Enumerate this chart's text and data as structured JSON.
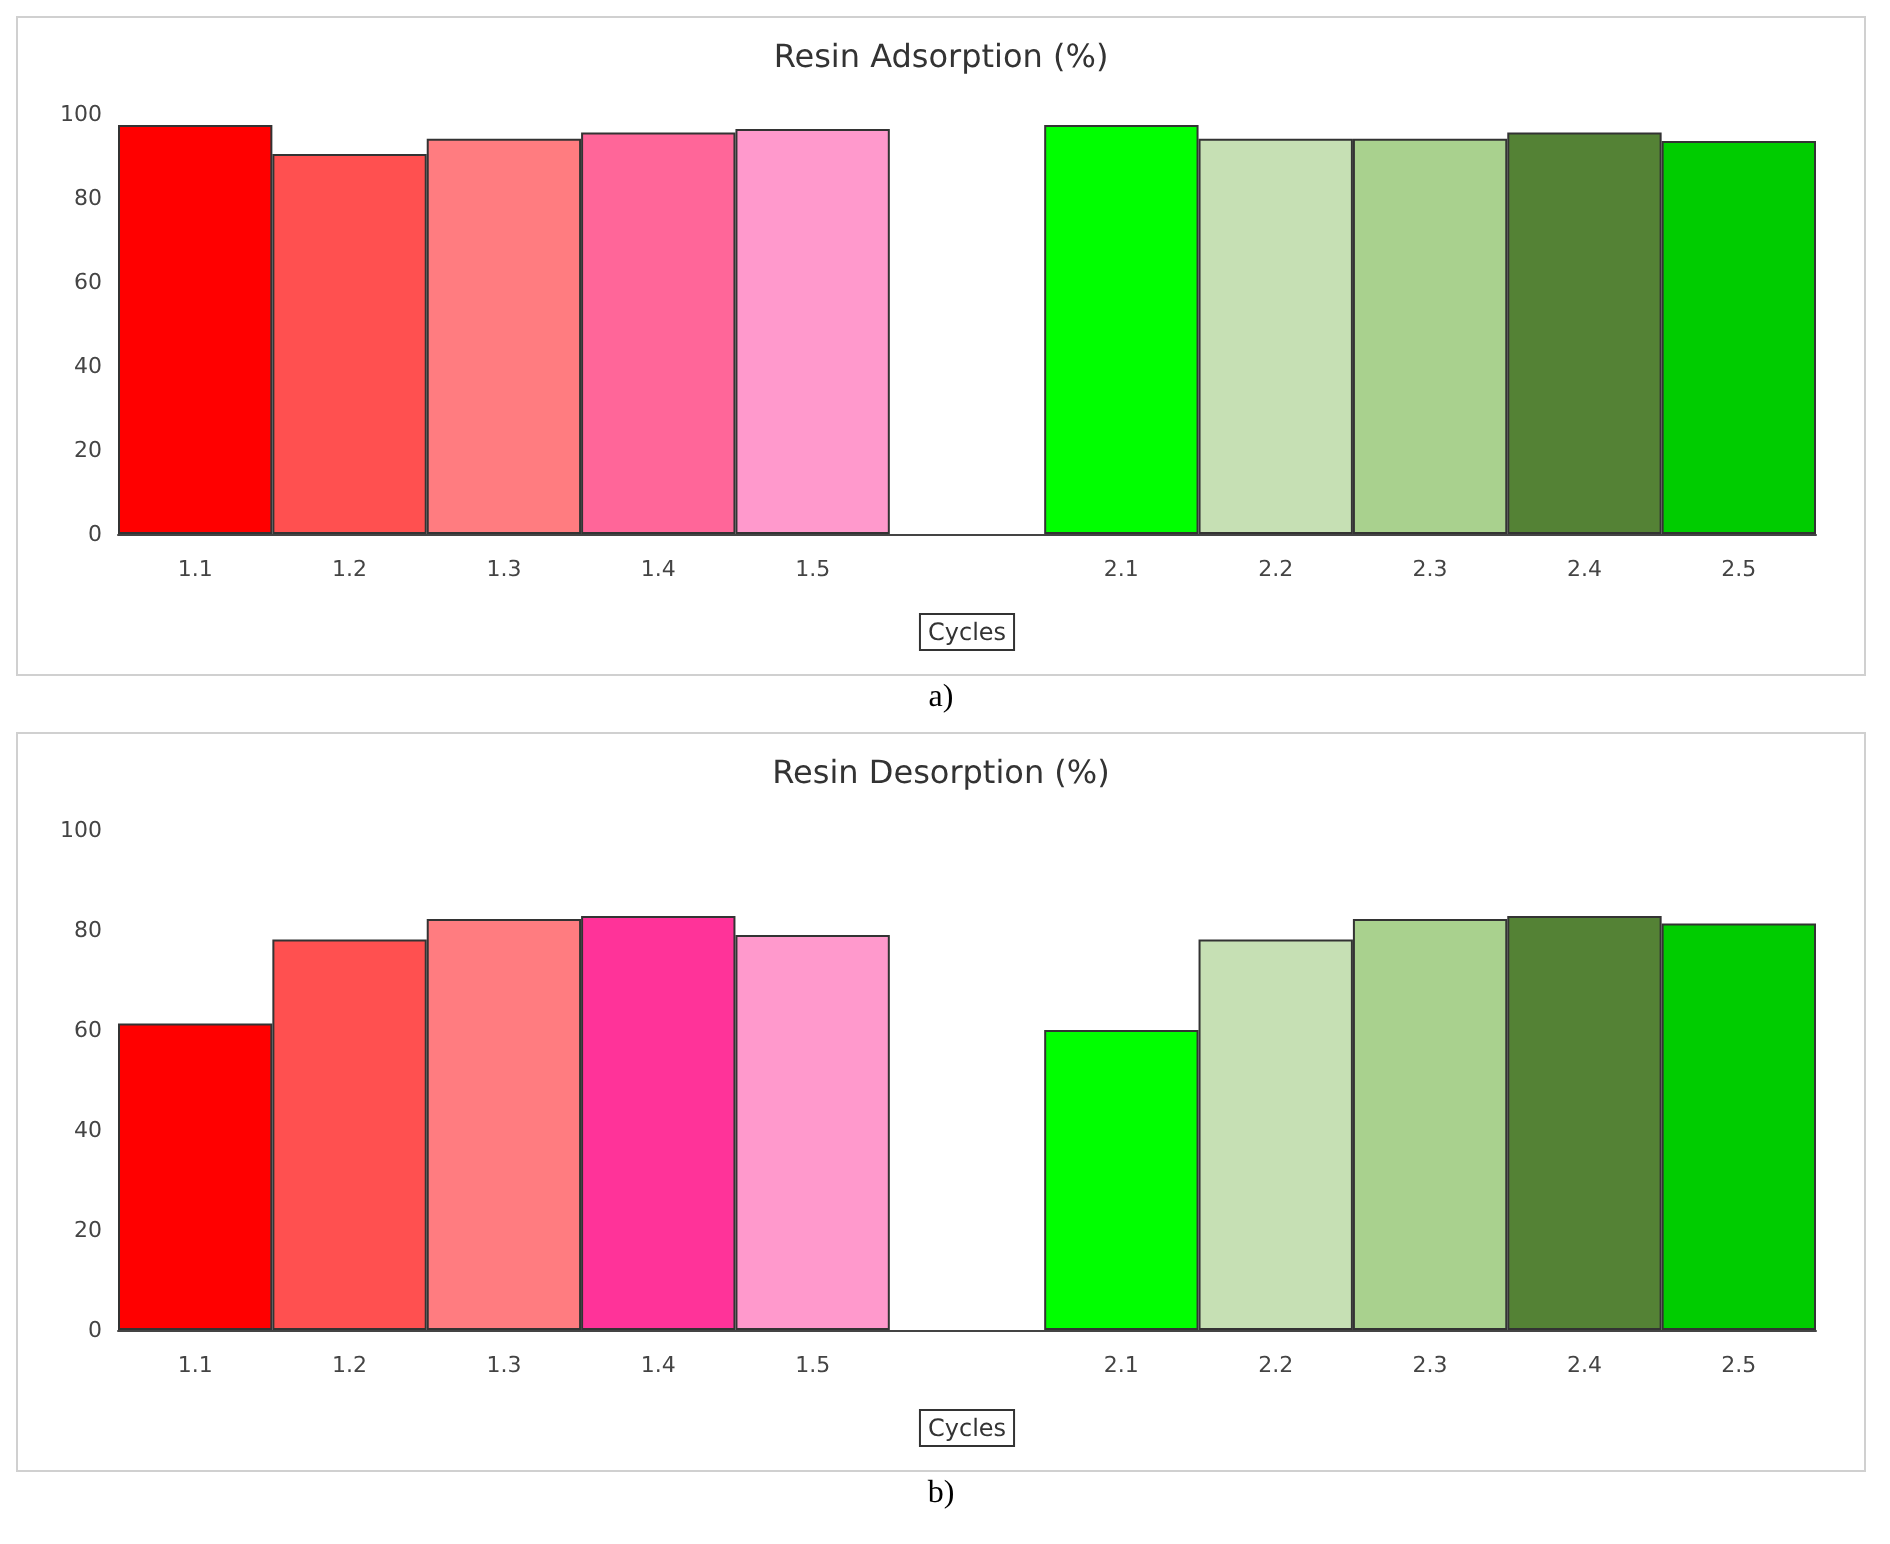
{
  "chart_data": [
    {
      "type": "bar",
      "title": "Resin Adsorption (%)",
      "xlabel": "Cycles",
      "categories": [
        "1.1",
        "1.2",
        "1.3",
        "1.4",
        "1.5",
        null,
        "2.1",
        "2.2",
        "2.3",
        "2.4",
        "2.5"
      ],
      "values": [
        97.4,
        90.5,
        94.1,
        95.6,
        96.4,
        null,
        97.4,
        94.1,
        94.1,
        95.6,
        93.6
      ],
      "colors": [
        "#ff0000",
        "#ff5050",
        "#ff7c80",
        "#ff6699",
        "#ff99cc",
        "#ffffff",
        "#00ff00",
        "#c6e0b4",
        "#a9d18e",
        "#548235",
        "#00cc00"
      ],
      "ylim": [
        0,
        100
      ],
      "yticks": [
        0,
        20,
        40,
        60,
        80,
        100
      ],
      "grid": false,
      "annotations": [
        "a)"
      ]
    },
    {
      "type": "bar",
      "title": "Resin Desorption (%)",
      "xlabel": "Cycles",
      "categories": [
        "1.1",
        "1.2",
        "1.3",
        "1.4",
        "1.5",
        null,
        "2.1",
        "2.2",
        "2.3",
        "2.4",
        "2.5"
      ],
      "values": [
        61.3,
        78.1,
        82.2,
        82.8,
        79.0,
        null,
        60.0,
        78.1,
        82.2,
        82.8,
        81.3
      ],
      "colors": [
        "#ff0000",
        "#ff5050",
        "#ff7c80",
        "#ff3399",
        "#ff99cc",
        "#ffffff",
        "#00ff00",
        "#c6e0b4",
        "#a9d18e",
        "#548235",
        "#00cc00"
      ],
      "ylim": [
        0,
        100
      ],
      "yticks": [
        0,
        20,
        40,
        60,
        80,
        100
      ],
      "grid": false,
      "annotations": [
        "b)"
      ]
    }
  ]
}
